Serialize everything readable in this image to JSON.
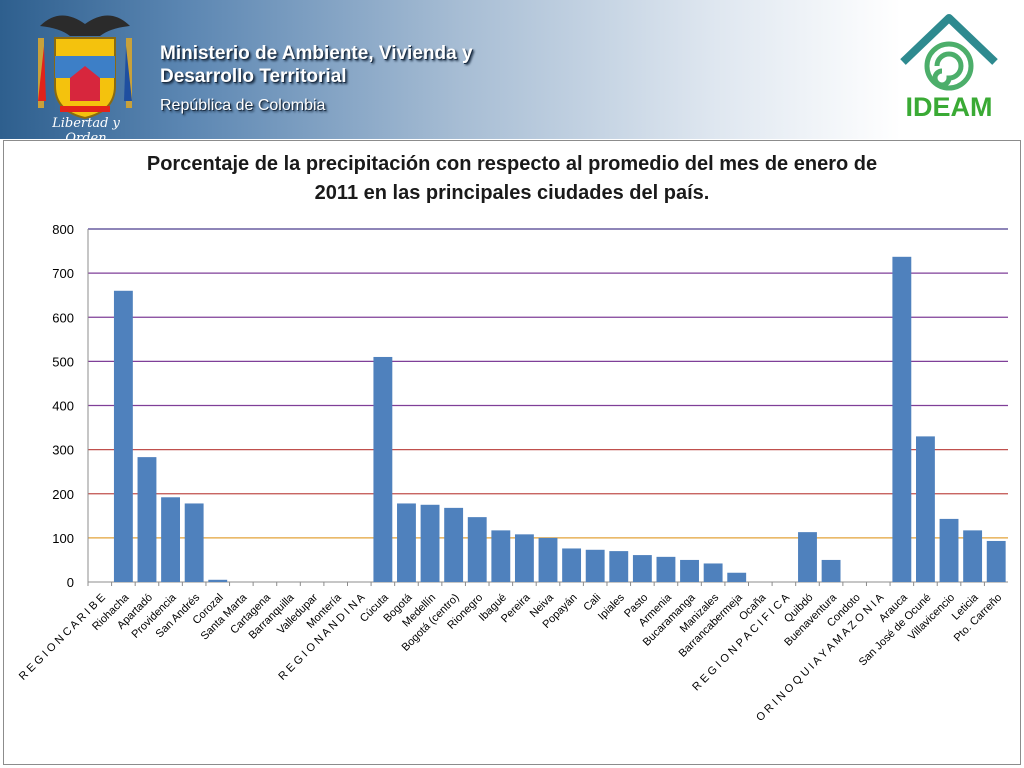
{
  "header": {
    "ministry_line1": "Ministerio de Ambiente, Vivienda y",
    "ministry_line2": "Desarrollo Territorial",
    "republic": "República de Colombia",
    "crest_motto": "Libertad y Orden",
    "logo_text": "IDEAM"
  },
  "colors": {
    "bar": "#4f81bd",
    "gridline_colors": [
      "#e3a33a",
      "#c0504d",
      "#c0504d",
      "#7f3f98",
      "#7f3f98",
      "#7f3f98",
      "#7f3f98",
      "#4b3c8e"
    ]
  },
  "chart_data": {
    "type": "bar",
    "title_line1": "Porcentaje de la precipitación con respecto al promedio del mes de enero de",
    "title_line2": "2011 en las principales ciudades del país.",
    "ylim": [
      0,
      800
    ],
    "yticks": [
      0,
      100,
      200,
      300,
      400,
      500,
      600,
      700,
      800
    ],
    "categories": [
      "R E G I O N   C A R I B E",
      "Riohacha",
      "Apartadó",
      "Providencia",
      "San Andrés",
      "Corozal",
      "Santa Marta",
      "Cartagena",
      "Barranquilla",
      "Valledupar",
      "Montería",
      "R E G I O N   A N D I N A",
      "Cúcuta",
      "Bogotá",
      "Medellín",
      "Bogotá (centro)",
      "Rionegro",
      "Ibagué",
      "Pereira",
      "Neiva",
      "Popayán",
      "Cali",
      "Ipiales",
      "Pasto",
      "Armenia",
      "Bucaramanga",
      "Manizales",
      "Barrancabermeja",
      "Ocaña",
      "R E G I O N   P A C I F I C A",
      "Quibdó",
      "Buenaventura",
      "Condoto",
      "O R I N O Q U I A   Y   A M A Z O N I A",
      "Arauca",
      "San José de Ocuné",
      "Villavicencio",
      "Leticia",
      "Pto. Carreño"
    ],
    "values": [
      0,
      660,
      283,
      192,
      178,
      5,
      0,
      0,
      0,
      0,
      0,
      0,
      510,
      178,
      175,
      168,
      147,
      117,
      108,
      100,
      76,
      73,
      70,
      61,
      57,
      50,
      42,
      21,
      0,
      0,
      113,
      50,
      0,
      0,
      737,
      330,
      143,
      117,
      93
    ]
  }
}
